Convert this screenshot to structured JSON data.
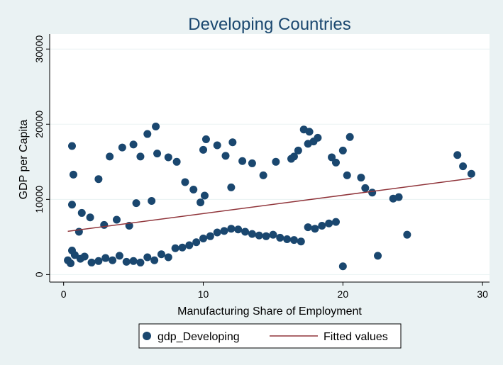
{
  "chart_data": {
    "type": "scatter",
    "title": "Developing Countries",
    "xlabel": "Manufacturing Share of Employment",
    "ylabel": "GDP per Capita",
    "xlim": [
      -1,
      30.5
    ],
    "ylim": [
      -1000,
      32000
    ],
    "x_ticks": [
      0,
      10,
      20,
      30
    ],
    "x_tick_labels": [
      "0",
      "10",
      "20",
      "30"
    ],
    "y_ticks": [
      0,
      10000,
      20000,
      30000
    ],
    "y_tick_labels": [
      "0",
      "10000",
      "20000",
      "30000"
    ],
    "grid": "horizontal",
    "legend_position": "bottom",
    "series": [
      {
        "name": "gdp_Developing",
        "kind": "points",
        "color": "#1a476f",
        "x": [
          0.3,
          0.5,
          0.6,
          0.8,
          1.2,
          1.5,
          2.0,
          2.5,
          3.0,
          3.5,
          4.0,
          4.5,
          5.0,
          5.5,
          6.0,
          6.5,
          7.0,
          7.5,
          8.0,
          8.5,
          9.0,
          9.5,
          10.0,
          10.5,
          11.0,
          11.5,
          12.0,
          12.5,
          13.0,
          13.5,
          14.0,
          14.5,
          15.0,
          15.5,
          16.0,
          16.5,
          17.0,
          17.5,
          18.0,
          18.5,
          19.0,
          19.5,
          20.0,
          0.6,
          0.6,
          0.7,
          1.3,
          2.5,
          3.3,
          4.2,
          5.0,
          5.5,
          6.0,
          6.6,
          6.7,
          7.5,
          8.1,
          8.7,
          9.3,
          10.0,
          10.2,
          11.0,
          11.6,
          12.1,
          12.8,
          13.5,
          14.3,
          15.2,
          16.3,
          16.8,
          17.5,
          18.2,
          19.2,
          19.5,
          20.0,
          20.3,
          20.5,
          21.3,
          21.6,
          22.1,
          22.5,
          23.6,
          24.0,
          24.6,
          28.2,
          28.6,
          29.2,
          17.2,
          17.6,
          17.9,
          16.5,
          12.0,
          10.1,
          9.8,
          4.7,
          5.2,
          6.3,
          3.8,
          2.9,
          1.9,
          1.1
        ],
        "y": [
          1900,
          1500,
          3200,
          2600,
          2100,
          2400,
          1600,
          1800,
          2200,
          1900,
          2500,
          1700,
          1800,
          1600,
          2300,
          1900,
          2700,
          2300,
          3500,
          3600,
          3900,
          4300,
          4800,
          5100,
          5600,
          5800,
          6100,
          6000,
          5700,
          5400,
          5200,
          5100,
          5300,
          4900,
          4700,
          4600,
          4400,
          6300,
          6100,
          6500,
          6800,
          7000,
          1100,
          17100,
          9300,
          13300,
          8200,
          12700,
          15700,
          16900,
          17300,
          15700,
          18700,
          19700,
          16100,
          15600,
          15000,
          12300,
          11300,
          16600,
          18000,
          17200,
          15800,
          17600,
          15100,
          14800,
          13200,
          15000,
          15400,
          16500,
          17400,
          18200,
          15600,
          14900,
          16500,
          13200,
          18300,
          12900,
          11500,
          10900,
          2500,
          10100,
          10300,
          5300,
          15900,
          14400,
          13400,
          19300,
          19000,
          17700,
          15700,
          11600,
          10500,
          9600,
          6500,
          9500,
          9800,
          7300,
          6600,
          7600,
          5700
        ]
      },
      {
        "name": "Fitted values",
        "kind": "line",
        "color": "#90353b",
        "x": [
          0.3,
          29.2
        ],
        "y": [
          5750,
          12800
        ]
      }
    ]
  }
}
